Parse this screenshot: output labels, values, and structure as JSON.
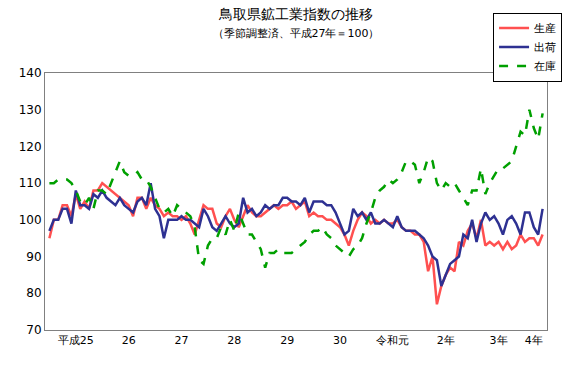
{
  "chart_data": {
    "type": "line",
    "title": "鳥取県鉱工業指数の推移",
    "subtitle": "（季節調整済、平成27年＝100）",
    "categories": [
      null,
      null,
      null,
      null,
      null,
      null,
      "平成25",
      null,
      null,
      null,
      null,
      null,
      null,
      null,
      null,
      null,
      null,
      null,
      "26",
      null,
      null,
      null,
      null,
      null,
      null,
      null,
      null,
      null,
      null,
      null,
      "27",
      null,
      null,
      null,
      null,
      null,
      null,
      null,
      null,
      null,
      null,
      null,
      "28",
      null,
      null,
      null,
      null,
      null,
      null,
      null,
      null,
      null,
      null,
      null,
      "29",
      null,
      null,
      null,
      null,
      null,
      null,
      null,
      null,
      null,
      null,
      null,
      "30",
      null,
      null,
      null,
      null,
      null,
      null,
      null,
      null,
      null,
      null,
      null,
      "令和元",
      null,
      null,
      null,
      null,
      null,
      null,
      null,
      null,
      null,
      null,
      null,
      "2年",
      null,
      null,
      null,
      null,
      null,
      null,
      null,
      null,
      null,
      null,
      null,
      "3年",
      null,
      null,
      null,
      null,
      null,
      null,
      null,
      "4年",
      null,
      null
    ],
    "series": [
      {
        "name": "生産",
        "color": "#ff5050",
        "line_style": "solid",
        "values": [
          95,
          100,
          100,
          104,
          104,
          101,
          107,
          103,
          105,
          103,
          108,
          108,
          110,
          109,
          108,
          107,
          106,
          105,
          104,
          101,
          106,
          106,
          103,
          106,
          104,
          103,
          101,
          102,
          101,
          101,
          100,
          101,
          99,
          96,
          100,
          104,
          103,
          103,
          99,
          98,
          101,
          103,
          100,
          98,
          101,
          104,
          102,
          101,
          101,
          102,
          103,
          104,
          103,
          104,
          104,
          105,
          103,
          104,
          105,
          101,
          102,
          101,
          101,
          100,
          100,
          99,
          98,
          96,
          93,
          97,
          100,
          102,
          101,
          99,
          100,
          99,
          100,
          99,
          99,
          100,
          98,
          97,
          97,
          96,
          96,
          94,
          86,
          90,
          77,
          82,
          85,
          87,
          86,
          94,
          93,
          97,
          99,
          95,
          100,
          93,
          94,
          93,
          94,
          92,
          94,
          92,
          93,
          96,
          94,
          95,
          95,
          93,
          96
        ]
      },
      {
        "name": "出荷",
        "color": "#2e3192",
        "line_style": "solid",
        "values": [
          97,
          100,
          100,
          103,
          103,
          99,
          108,
          104,
          104,
          103,
          107,
          106,
          108,
          106,
          105,
          104,
          106,
          104,
          103,
          102,
          105,
          106,
          104,
          110,
          103,
          101,
          95,
          100,
          100,
          100,
          101,
          100,
          100,
          99,
          98,
          103,
          101,
          98,
          97,
          99,
          101,
          99,
          98,
          99,
          106,
          102,
          103,
          101,
          102,
          104,
          103,
          104,
          104,
          106,
          106,
          105,
          105,
          104,
          106,
          102,
          105,
          105,
          105,
          104,
          104,
          102,
          99,
          96,
          97,
          103,
          101,
          102,
          100,
          102,
          99,
          99,
          100,
          99,
          98,
          101,
          98,
          97,
          97,
          97,
          96,
          95,
          93,
          90,
          89,
          82,
          85,
          88,
          89,
          90,
          96,
          95,
          100,
          94,
          99,
          102,
          100,
          101,
          99,
          96,
          100,
          101,
          99,
          96,
          102,
          102,
          98,
          96,
          103
        ]
      },
      {
        "name": "在庫",
        "color": "#00a000",
        "line_style": "dash",
        "values": [
          110,
          110,
          111,
          111,
          111,
          110,
          108,
          105,
          104,
          106,
          103,
          108,
          108,
          107,
          110,
          113,
          116,
          113,
          112,
          112,
          113,
          111,
          111,
          109,
          106,
          103,
          102,
          103,
          101,
          104,
          103,
          102,
          101,
          98,
          89,
          88,
          93,
          95,
          95,
          98,
          96,
          100,
          97,
          102,
          99,
          96,
          96,
          94,
          92,
          87,
          91,
          91,
          92,
          91,
          91,
          91,
          92,
          93,
          94,
          96,
          97,
          97,
          98,
          96,
          95,
          93,
          92,
          91,
          90,
          92,
          93,
          95,
          99,
          102,
          106,
          108,
          109,
          111,
          110,
          111,
          113,
          116,
          116,
          115,
          110,
          113,
          117,
          116,
          110,
          108,
          110,
          109,
          110,
          108,
          106,
          104,
          108,
          108,
          114,
          107,
          110,
          112,
          114,
          114,
          115,
          116,
          120,
          124,
          123,
          130,
          125,
          122,
          129
        ]
      }
    ],
    "ylim": [
      70,
      140
    ],
    "yticks": [
      70,
      80,
      90,
      100,
      110,
      120,
      130,
      140
    ],
    "grid": false,
    "legend": "top right"
  }
}
